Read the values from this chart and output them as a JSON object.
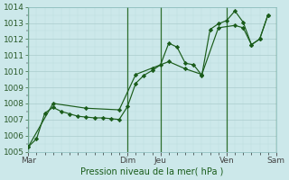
{
  "xlabel": "Pression niveau de la mer( hPa )",
  "bg_color": "#cce8ea",
  "grid_major_color": "#aacccc",
  "grid_minor_color": "#bbdddd",
  "line_color": "#1a5c1a",
  "ylim": [
    1005,
    1014
  ],
  "yticks": [
    1005,
    1006,
    1007,
    1008,
    1009,
    1010,
    1011,
    1012,
    1013,
    1014
  ],
  "day_labels": [
    "Mar",
    "Dim",
    "Jeu",
    "Ven",
    "Sam"
  ],
  "day_positions": [
    0,
    12,
    16,
    24,
    30
  ],
  "xlim": [
    0,
    30
  ],
  "series1_x": [
    0,
    1,
    2,
    3,
    4,
    5,
    6,
    7,
    8,
    9,
    10,
    11,
    12,
    13,
    14,
    15,
    16,
    17,
    18,
    19,
    20,
    21,
    22,
    23,
    24,
    25,
    26,
    27,
    28,
    29
  ],
  "series1_y": [
    1005.3,
    1005.8,
    1007.4,
    1007.75,
    1007.5,
    1007.35,
    1007.2,
    1007.15,
    1007.1,
    1007.1,
    1007.05,
    1007.0,
    1007.8,
    1009.25,
    1009.75,
    1010.05,
    1010.4,
    1011.75,
    1011.5,
    1010.5,
    1010.4,
    1009.75,
    1012.6,
    1012.95,
    1013.15,
    1013.75,
    1013.05,
    1011.65,
    1012.0,
    1013.5
  ],
  "series2_x": [
    0,
    3,
    7,
    11,
    13,
    15,
    17,
    19,
    21,
    23,
    25,
    26,
    27,
    28,
    29
  ],
  "series2_y": [
    1005.3,
    1008.0,
    1007.7,
    1007.6,
    1009.8,
    1010.2,
    1010.6,
    1010.15,
    1009.8,
    1012.7,
    1012.85,
    1012.7,
    1011.65,
    1012.0,
    1013.5
  ]
}
